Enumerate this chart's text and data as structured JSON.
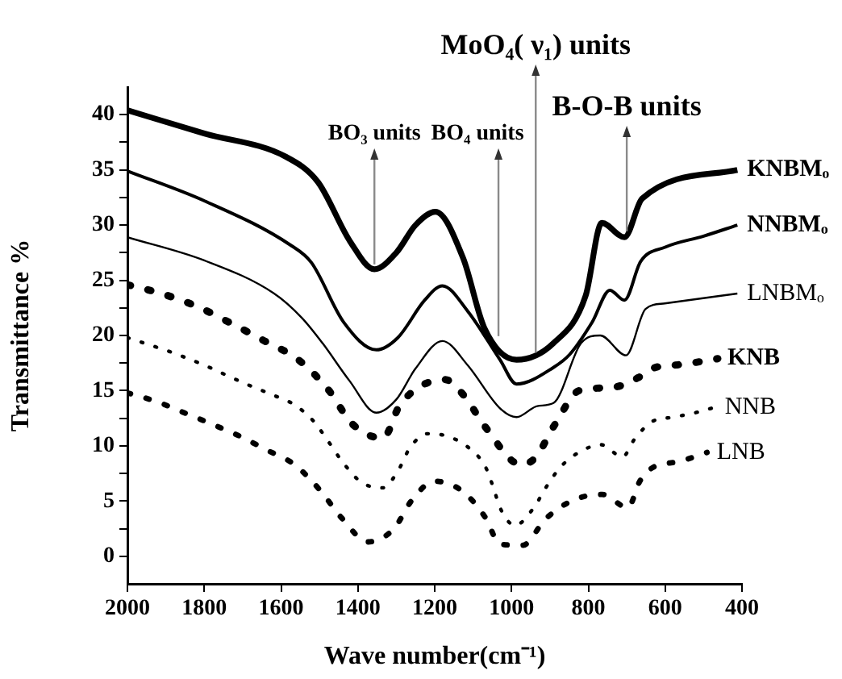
{
  "chart_data": {
    "type": "line",
    "xlabel": "Wave number(cm⁻¹)",
    "ylabel": "Transmittance %",
    "marker": "none",
    "xlim": [
      2000,
      400
    ],
    "xticks": [
      2000,
      1800,
      1600,
      1400,
      1200,
      1000,
      800,
      600,
      400
    ],
    "ylim": [
      -2.5,
      42.5
    ],
    "yticks": [
      0,
      {
        "value": 2.5,
        "label": null
      },
      5,
      {
        "value": 7.5,
        "label": null
      },
      10,
      {
        "value": 12.5,
        "label": null
      },
      15,
      {
        "value": 17.5,
        "label": null
      },
      20,
      {
        "value": 22.5,
        "label": null
      },
      25,
      {
        "value": 27.5,
        "label": null
      },
      30,
      {
        "value": 32.5,
        "label": null
      },
      35,
      {
        "value": 37.5,
        "label": null
      },
      40
    ],
    "series": [
      {
        "name": "KNBMₒ",
        "color": "#000000",
        "line_style": "solid",
        "x": [
          2000,
          1800,
          1588,
          1504,
          1420,
          1357,
          1300,
          1250,
          1198,
          1126,
          1071,
          987,
          891,
          807,
          765,
          706,
          660,
          412
        ],
        "values": [
          40.4,
          38.3,
          36.2,
          33.9,
          28.5,
          26,
          27.5,
          30,
          31.2,
          27,
          20.7,
          17.8,
          19.3,
          23.6,
          30.2,
          28.9,
          32.4,
          35
        ]
      },
      {
        "name": "NNBMₒ",
        "color": "#000000",
        "line_style": "solid",
        "x": [
          2000,
          1800,
          1576,
          1521,
          1437,
          1352,
          1296,
          1226,
          1180,
          1114,
          1030,
          987,
          891,
          848,
          790,
          744,
          706,
          664,
          600,
          500,
          412
        ],
        "values": [
          34.9,
          32.2,
          28.2,
          26.6,
          21.2,
          18.7,
          19.8,
          23.2,
          24.5,
          22.2,
          17.8,
          15.6,
          17.1,
          18.3,
          21.2,
          24.1,
          23.2,
          26.7,
          28,
          29,
          30
        ]
      },
      {
        "name": "LNBMₒ",
        "color": "#000000",
        "line_style": "solid",
        "x": [
          2000,
          1800,
          1618,
          1546,
          1492,
          1422,
          1352,
          1300,
          1250,
          1180,
          1114,
          1030,
          987,
          933,
          890,
          819,
          769,
          702,
          651,
          601,
          412
        ],
        "values": [
          28.9,
          26.8,
          23.8,
          21.6,
          19.3,
          15.9,
          13,
          14.2,
          17,
          19.5,
          17.3,
          13.4,
          12.6,
          13.6,
          13.9,
          19.3,
          20,
          18.2,
          22.4,
          22.9,
          23.8
        ]
      },
      {
        "name": "KNB",
        "color": "#000000",
        "line_style": "dotted",
        "x": [
          2000,
          1912,
          1817,
          1730,
          1643,
          1555,
          1475,
          1415,
          1335,
          1289,
          1173,
          1125,
          1068,
          975,
          939,
          886,
          824,
          736,
          669,
          634,
          550,
          463
        ],
        "values": [
          24.6,
          23.8,
          22.6,
          21.1,
          19.5,
          17.8,
          15,
          12,
          10.7,
          13.8,
          16,
          14.6,
          11.7,
          8.3,
          8.9,
          12,
          15,
          15.3,
          16.2,
          17,
          17.4,
          17.9
        ]
      },
      {
        "name": "NNB",
        "color": "#000000",
        "line_style": "dotted",
        "x": [
          2000,
          1947,
          1887,
          1786,
          1730,
          1677,
          1621,
          1569,
          1517,
          1475,
          1439,
          1391,
          1335,
          1293,
          1265,
          1219,
          1170,
          1114,
          1068,
          1047,
          1030,
          991,
          942,
          911,
          872,
          820,
          767,
          711,
          680,
          634,
          578,
          522,
          470
        ],
        "values": [
          19.8,
          19.2,
          18.5,
          17.1,
          16.2,
          15.4,
          14.6,
          13.8,
          12.3,
          10.3,
          8.5,
          6.7,
          6.2,
          7.9,
          9.8,
          11.1,
          10.9,
          9.9,
          8.1,
          6.2,
          4.4,
          2.8,
          4.4,
          6.2,
          8.1,
          9.5,
          10.1,
          9,
          10.6,
          12.2,
          12.6,
          13,
          13.5
        ]
      },
      {
        "name": "LNB",
        "color": "#000000",
        "line_style": "dotted",
        "x": [
          2000,
          1923,
          1852,
          1782,
          1709,
          1636,
          1565,
          1499,
          1443,
          1373,
          1306,
          1261,
          1201,
          1128,
          1068,
          1030,
          971,
          911,
          838,
          764,
          697,
          666,
          634,
          561,
          491
        ],
        "values": [
          14.8,
          14,
          13,
          12,
          10.9,
          9.6,
          8.3,
          6,
          3.5,
          1.3,
          2.5,
          5,
          6.8,
          5.9,
          3.5,
          1.1,
          1,
          3.4,
          5.1,
          5.6,
          4.4,
          6.8,
          8,
          8.6,
          9.4
        ]
      }
    ],
    "annotations": [
      {
        "text": "BO₃ units",
        "x": 1357,
        "y": 26
      },
      {
        "text": "BO₄ units",
        "x": 1034,
        "y": 19.5
      },
      {
        "text": "MoO₄( ν₁) units",
        "x": 937,
        "y": 18
      },
      {
        "text": "B-O-B units",
        "x": 700,
        "y": 29
      }
    ]
  }
}
